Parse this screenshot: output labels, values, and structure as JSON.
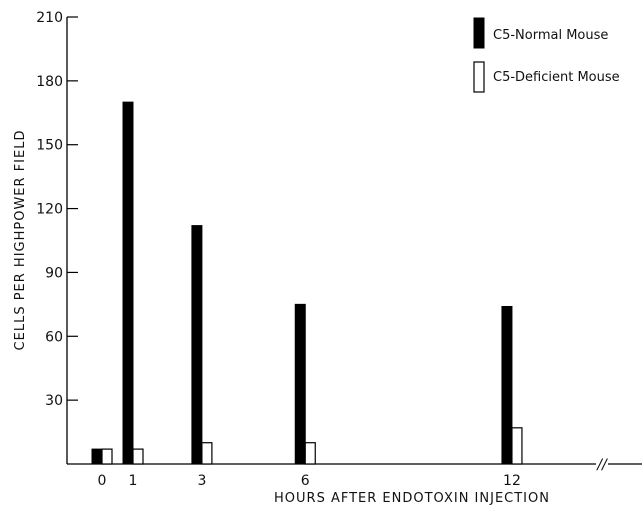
{
  "chart_data": {
    "type": "bar",
    "xlabel": "HOURS AFTER ENDOTOXIN INJECTION",
    "ylabel": "CELLS PER HIGHPOWER FIELD",
    "ylim": [
      0,
      210
    ],
    "yticks": [
      30,
      60,
      90,
      120,
      150,
      180,
      210
    ],
    "x": [
      0,
      1,
      3,
      6,
      12
    ],
    "x_tick_labels": [
      "0",
      "1",
      "3",
      "6",
      "12"
    ],
    "axis_break": "//",
    "legend_position": "top-right",
    "series": [
      {
        "name": "C5-Normal Mouse",
        "fill": "solid",
        "color": "#000000",
        "values": [
          7,
          170,
          112,
          75,
          74
        ]
      },
      {
        "name": "C5-Deficient Mouse",
        "fill": "open",
        "color": "#ffffff",
        "values": [
          7,
          7,
          10,
          10,
          17
        ]
      }
    ]
  }
}
